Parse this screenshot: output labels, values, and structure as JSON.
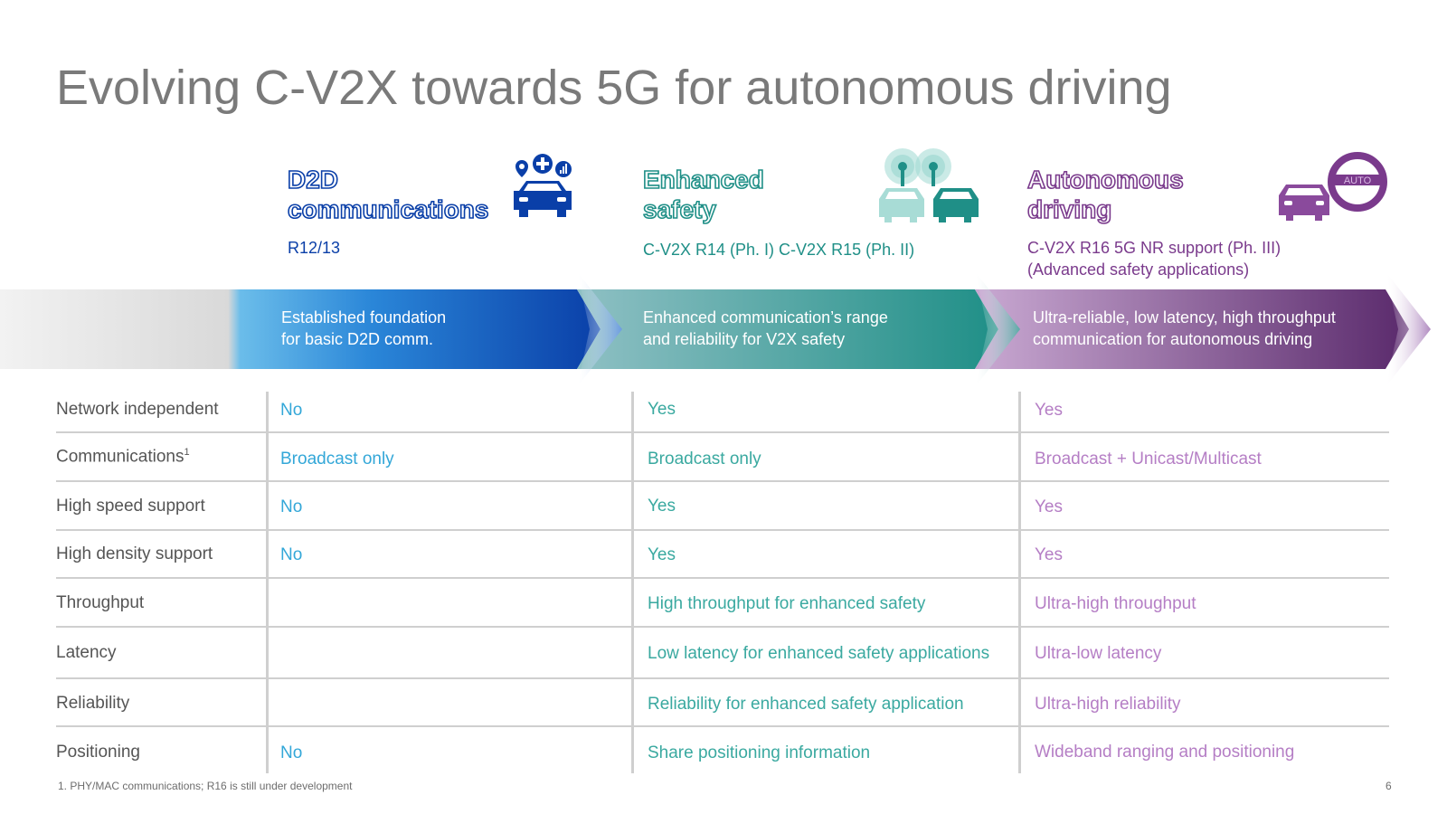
{
  "title": "Evolving C-V2X towards 5G for autonomous driving",
  "phases": [
    {
      "name_line1": "D2D",
      "name_line2": "communications",
      "release": "R12/13",
      "release_line2": "",
      "banner_line1": "Established foundation",
      "banner_line2": "for basic D2D comm.",
      "color": "#0a3fa8",
      "icon": "connected-car-icon"
    },
    {
      "name_line1": "Enhanced",
      "name_line2": "safety",
      "release": "C-V2X R14 (Ph. I) C-V2X R15 (Ph. II)",
      "release_line2": "",
      "banner_line1": "Enhanced communication’s range",
      "banner_line2": "and reliability for V2X safety",
      "color": "#1f8f87",
      "icon": "cars-with-signal-icon"
    },
    {
      "name_line1": "Autonomous",
      "name_line2": "driving",
      "release": "C-V2X R16 5G NR support (Ph. III)",
      "release_line2": "(Advanced safety applications)",
      "banner_line1": "Ultra-reliable, low latency, high throughput",
      "banner_line2": "communication for autonomous driving",
      "color": "#7a3a8c",
      "icon": "car-steering-wheel-icon",
      "icon_label": "AUTO"
    }
  ],
  "table": {
    "columns": [
      "D2D communications",
      "Enhanced safety",
      "Autonomous driving"
    ],
    "rows": [
      {
        "label": "Network independent",
        "superscript": "",
        "values": [
          "No",
          "Yes",
          "Yes"
        ]
      },
      {
        "label": "Communications",
        "superscript": "1",
        "values": [
          "Broadcast only",
          "Broadcast only",
          "Broadcast + Unicast/Multicast"
        ]
      },
      {
        "label": "High speed support",
        "superscript": "",
        "values": [
          "No",
          "Yes",
          "Yes"
        ]
      },
      {
        "label": "High density support",
        "superscript": "",
        "values": [
          "No",
          "Yes",
          "Yes"
        ]
      },
      {
        "label": "Throughput",
        "superscript": "",
        "values": [
          "",
          "High throughput for enhanced safety",
          "Ultra-high throughput"
        ]
      },
      {
        "label": "Latency",
        "superscript": "",
        "values": [
          "",
          "Low latency for enhanced safety applications",
          "Ultra-low latency"
        ]
      },
      {
        "label": "Reliability",
        "superscript": "",
        "values": [
          "",
          "Reliability for enhanced safety application",
          "Ultra-high reliability"
        ]
      },
      {
        "label": "Positioning",
        "superscript": "",
        "values": [
          "No",
          "Share positioning information",
          "Wideband ranging and positioning"
        ]
      }
    ]
  },
  "colors": {
    "blue": "#33a7d8",
    "teal": "#3aa9a0",
    "purple": "#b57ec5",
    "dark_blue": "#0a3fa8"
  },
  "footnote": "1. PHY/MAC communications; R16 is still under development",
  "page_number": "6"
}
